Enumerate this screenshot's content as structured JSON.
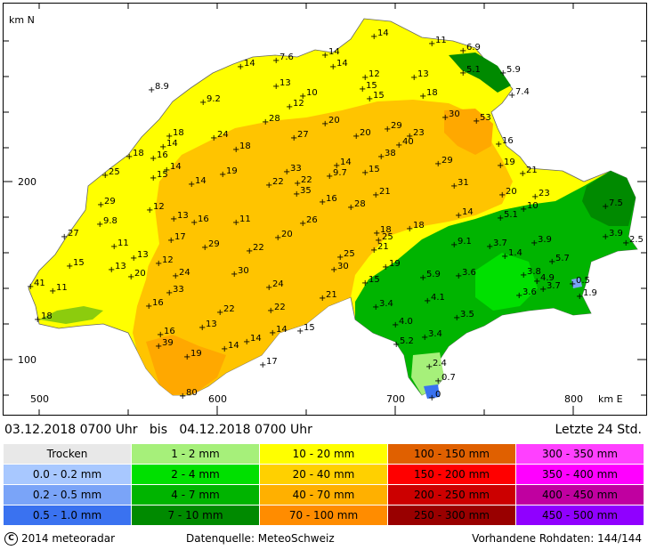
{
  "map": {
    "axis_north_label": "km N",
    "axis_east_label": "km E",
    "y_ticks": [
      "200",
      "100"
    ],
    "x_ticks": [
      "500",
      "600",
      "700",
      "800"
    ],
    "stations": [
      {
        "label": "14",
        "x": 420,
        "y": 36
      },
      {
        "label": "11",
        "x": 485,
        "y": 44
      },
      {
        "label": "6.9",
        "x": 520,
        "y": 52
      },
      {
        "label": "7.6",
        "x": 310,
        "y": 63
      },
      {
        "label": "14",
        "x": 365,
        "y": 57
      },
      {
        "label": "14",
        "x": 270,
        "y": 70
      },
      {
        "label": "14",
        "x": 374,
        "y": 70
      },
      {
        "label": "5.1",
        "x": 520,
        "y": 77
      },
      {
        "label": "5.9",
        "x": 565,
        "y": 77
      },
      {
        "label": "12",
        "x": 410,
        "y": 82
      },
      {
        "label": "13",
        "x": 465,
        "y": 82
      },
      {
        "label": "8.9",
        "x": 170,
        "y": 96
      },
      {
        "label": "13",
        "x": 310,
        "y": 92
      },
      {
        "label": "15",
        "x": 407,
        "y": 95
      },
      {
        "label": "7.4",
        "x": 575,
        "y": 102
      },
      {
        "label": "9.2",
        "x": 228,
        "y": 110
      },
      {
        "label": "12",
        "x": 325,
        "y": 115
      },
      {
        "label": "10",
        "x": 340,
        "y": 103
      },
      {
        "label": "15",
        "x": 415,
        "y": 106
      },
      {
        "label": "18",
        "x": 475,
        "y": 103
      },
      {
        "label": "30",
        "x": 500,
        "y": 127
      },
      {
        "label": "53",
        "x": 535,
        "y": 131
      },
      {
        "label": "28",
        "x": 298,
        "y": 132
      },
      {
        "label": "20",
        "x": 365,
        "y": 134
      },
      {
        "label": "29",
        "x": 435,
        "y": 140
      },
      {
        "label": "18",
        "x": 190,
        "y": 148
      },
      {
        "label": "24",
        "x": 240,
        "y": 150
      },
      {
        "label": "27",
        "x": 330,
        "y": 150
      },
      {
        "label": "20",
        "x": 400,
        "y": 148
      },
      {
        "label": "40",
        "x": 448,
        "y": 158
      },
      {
        "label": "23",
        "x": 460,
        "y": 148
      },
      {
        "label": "14",
        "x": 183,
        "y": 160
      },
      {
        "label": "18",
        "x": 265,
        "y": 163
      },
      {
        "label": "16",
        "x": 560,
        "y": 157
      },
      {
        "label": "18",
        "x": 145,
        "y": 171
      },
      {
        "label": "16",
        "x": 172,
        "y": 173
      },
      {
        "label": "38",
        "x": 428,
        "y": 171
      },
      {
        "label": "14",
        "x": 187,
        "y": 186
      },
      {
        "label": "33",
        "x": 322,
        "y": 188
      },
      {
        "label": "14",
        "x": 378,
        "y": 181
      },
      {
        "label": "29",
        "x": 492,
        "y": 179
      },
      {
        "label": "19",
        "x": 562,
        "y": 181
      },
      {
        "label": "25",
        "x": 118,
        "y": 192
      },
      {
        "label": "15",
        "x": 172,
        "y": 195
      },
      {
        "label": "19",
        "x": 250,
        "y": 191
      },
      {
        "label": "9.7",
        "x": 370,
        "y": 193
      },
      {
        "label": "15",
        "x": 410,
        "y": 189
      },
      {
        "label": "21",
        "x": 587,
        "y": 190
      },
      {
        "label": "14",
        "x": 215,
        "y": 202
      },
      {
        "label": "22",
        "x": 302,
        "y": 203
      },
      {
        "label": "22",
        "x": 334,
        "y": 201
      },
      {
        "label": "31",
        "x": 510,
        "y": 204
      },
      {
        "label": "35",
        "x": 333,
        "y": 213
      },
      {
        "label": "21",
        "x": 422,
        "y": 214
      },
      {
        "label": "20",
        "x": 564,
        "y": 214
      },
      {
        "label": "29",
        "x": 113,
        "y": 225
      },
      {
        "label": "16",
        "x": 362,
        "y": 222
      },
      {
        "label": "28",
        "x": 394,
        "y": 228
      },
      {
        "label": "23",
        "x": 601,
        "y": 216
      },
      {
        "label": "10",
        "x": 588,
        "y": 230
      },
      {
        "label": "7.5",
        "x": 680,
        "y": 227
      },
      {
        "label": "12",
        "x": 168,
        "y": 231
      },
      {
        "label": "13",
        "x": 195,
        "y": 241
      },
      {
        "label": "16",
        "x": 218,
        "y": 245
      },
      {
        "label": "11",
        "x": 265,
        "y": 245
      },
      {
        "label": "26",
        "x": 340,
        "y": 246
      },
      {
        "label": "14",
        "x": 515,
        "y": 237
      },
      {
        "label": "5.1",
        "x": 562,
        "y": 240
      },
      {
        "label": "9.8",
        "x": 112,
        "y": 247
      },
      {
        "label": "18",
        "x": 460,
        "y": 252
      },
      {
        "label": "18",
        "x": 423,
        "y": 257
      },
      {
        "label": "3.9",
        "x": 680,
        "y": 261
      },
      {
        "label": "2.5",
        "x": 703,
        "y": 268
      },
      {
        "label": "27",
        "x": 72,
        "y": 261
      },
      {
        "label": "17",
        "x": 192,
        "y": 265
      },
      {
        "label": "20",
        "x": 312,
        "y": 262
      },
      {
        "label": "25",
        "x": 425,
        "y": 265
      },
      {
        "label": "9.1",
        "x": 510,
        "y": 270
      },
      {
        "label": "3.7",
        "x": 550,
        "y": 272
      },
      {
        "label": "3.9",
        "x": 600,
        "y": 268
      },
      {
        "label": "11",
        "x": 128,
        "y": 272
      },
      {
        "label": "29",
        "x": 230,
        "y": 273
      },
      {
        "label": "22",
        "x": 280,
        "y": 277
      },
      {
        "label": "21",
        "x": 420,
        "y": 276
      },
      {
        "label": "1.4",
        "x": 567,
        "y": 283
      },
      {
        "label": "13",
        "x": 150,
        "y": 285
      },
      {
        "label": "12",
        "x": 178,
        "y": 291
      },
      {
        "label": "25",
        "x": 382,
        "y": 284
      },
      {
        "label": "5.7",
        "x": 620,
        "y": 289
      },
      {
        "label": "15",
        "x": 78,
        "y": 294
      },
      {
        "label": "13",
        "x": 125,
        "y": 298
      },
      {
        "label": "30",
        "x": 375,
        "y": 298
      },
      {
        "label": "19",
        "x": 433,
        "y": 295
      },
      {
        "label": "20",
        "x": 147,
        "y": 306
      },
      {
        "label": "24",
        "x": 197,
        "y": 305
      },
      {
        "label": "30",
        "x": 263,
        "y": 303
      },
      {
        "label": "5.9",
        "x": 475,
        "y": 307
      },
      {
        "label": "3.6",
        "x": 515,
        "y": 305
      },
      {
        "label": "3.8",
        "x": 588,
        "y": 304
      },
      {
        "label": "4.9",
        "x": 603,
        "y": 311
      },
      {
        "label": "0.5",
        "x": 643,
        "y": 314
      },
      {
        "label": "41",
        "x": 34,
        "y": 317
      },
      {
        "label": "11",
        "x": 59,
        "y": 322
      },
      {
        "label": "15",
        "x": 410,
        "y": 313
      },
      {
        "label": "24",
        "x": 302,
        "y": 318
      },
      {
        "label": "3.7",
        "x": 610,
        "y": 320
      },
      {
        "label": "33",
        "x": 190,
        "y": 324
      },
      {
        "label": "21",
        "x": 362,
        "y": 330
      },
      {
        "label": "3.6",
        "x": 583,
        "y": 327
      },
      {
        "label": "1.9",
        "x": 651,
        "y": 328
      },
      {
        "label": "4.1",
        "x": 480,
        "y": 333
      },
      {
        "label": "3.4",
        "x": 422,
        "y": 340
      },
      {
        "label": "16",
        "x": 167,
        "y": 339
      },
      {
        "label": "22",
        "x": 247,
        "y": 346
      },
      {
        "label": "22",
        "x": 304,
        "y": 344
      },
      {
        "label": "3.5",
        "x": 513,
        "y": 352
      },
      {
        "label": "18",
        "x": 42,
        "y": 354
      },
      {
        "label": "4.0",
        "x": 444,
        "y": 360
      },
      {
        "label": "13",
        "x": 227,
        "y": 363
      },
      {
        "label": "14",
        "x": 306,
        "y": 369
      },
      {
        "label": "15",
        "x": 337,
        "y": 367
      },
      {
        "label": "16",
        "x": 180,
        "y": 371
      },
      {
        "label": "3.4",
        "x": 477,
        "y": 374
      },
      {
        "label": "14",
        "x": 277,
        "y": 379
      },
      {
        "label": "5.2",
        "x": 445,
        "y": 382
      },
      {
        "label": "39",
        "x": 178,
        "y": 384
      },
      {
        "label": "14",
        "x": 252,
        "y": 387
      },
      {
        "label": "19",
        "x": 210,
        "y": 396
      },
      {
        "label": "17",
        "x": 295,
        "y": 405
      },
      {
        "label": "2.4",
        "x": 482,
        "y": 407
      },
      {
        "label": "0.7",
        "x": 492,
        "y": 423
      },
      {
        "label": "80",
        "x": 205,
        "y": 440
      },
      {
        "label": "0",
        "x": 485,
        "y": 442
      }
    ]
  },
  "period": {
    "text": "03.12.2018 0700 Uhr   bis   04.12.2018 0700 Uhr",
    "window": "Letzte 24 Std."
  },
  "legend": [
    [
      {
        "label": "Trocken",
        "color": "#e8e8e8"
      },
      {
        "label": "0.0 - 0.2 mm",
        "color": "#a8c8ff"
      },
      {
        "label": "0.2 - 0.5 mm",
        "color": "#7aa4f8"
      },
      {
        "label": "0.5 - 1.0 mm",
        "color": "#3a72f0"
      }
    ],
    [
      {
        "label": "1 - 2 mm",
        "color": "#a6f07a"
      },
      {
        "label": "2 - 4 mm",
        "color": "#00e000"
      },
      {
        "label": "4 - 7 mm",
        "color": "#00b400"
      },
      {
        "label": "7 - 10 mm",
        "color": "#008a00"
      }
    ],
    [
      {
        "label": "10 - 20 mm",
        "color": "#ffff00"
      },
      {
        "label": "20 - 40 mm",
        "color": "#ffd000"
      },
      {
        "label": "40 - 70 mm",
        "color": "#ffb000"
      },
      {
        "label": "70 - 100 mm",
        "color": "#ff8c00"
      }
    ],
    [
      {
        "label": "100 - 150 mm",
        "color": "#e06000"
      },
      {
        "label": "150 - 200 mm",
        "color": "#ff0000"
      },
      {
        "label": "200 - 250 mm",
        "color": "#cc0000"
      },
      {
        "label": "250 - 300 mm",
        "color": "#990000"
      }
    ],
    [
      {
        "label": "300 - 350 mm",
        "color": "#ff40ff"
      },
      {
        "label": "350 - 400 mm",
        "color": "#ff00ff"
      },
      {
        "label": "400 - 450 mm",
        "color": "#c000a0"
      },
      {
        "label": "450 - 500 mm",
        "color": "#9000ff"
      }
    ]
  ],
  "footer": {
    "copyright": "2014  meteoradar",
    "source": "Datenquelle: MeteoSchweiz",
    "rohdaten": "Vorhandene Rohdaten: 144/144"
  }
}
